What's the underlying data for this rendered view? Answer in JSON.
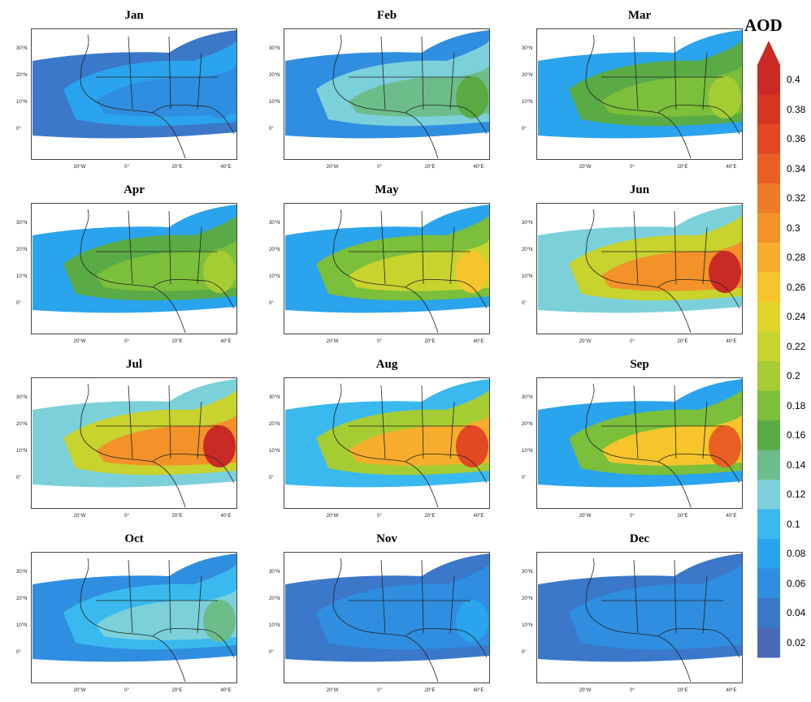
{
  "panels": [
    {
      "month": "Jan",
      "hot": 0.05,
      "mid": 0.08
    },
    {
      "month": "Feb",
      "hot": 0.16,
      "mid": 0.12
    },
    {
      "month": "Mar",
      "hot": 0.2,
      "mid": 0.16
    },
    {
      "month": "Apr",
      "hot": 0.19,
      "mid": 0.16
    },
    {
      "month": "May",
      "hot": 0.25,
      "mid": 0.17
    },
    {
      "month": "Jun",
      "hot": 0.39,
      "mid": 0.22
    },
    {
      "month": "Jul",
      "hot": 0.4,
      "mid": 0.22
    },
    {
      "month": "Aug",
      "hot": 0.36,
      "mid": 0.19
    },
    {
      "month": "Sep",
      "hot": 0.34,
      "mid": 0.18
    },
    {
      "month": "Oct",
      "hot": 0.14,
      "mid": 0.1
    },
    {
      "month": "Nov",
      "hot": 0.07,
      "mid": 0.06
    },
    {
      "month": "Dec",
      "hot": 0.06,
      "mid": 0.05
    }
  ],
  "lat_labels": [
    "30°N",
    "20°N",
    "10°N",
    "0°"
  ],
  "lon_labels": [
    "20°W",
    "0°",
    "20°E",
    "40°E"
  ],
  "colorbar": {
    "title": "AOD",
    "ticks": [
      "0.4",
      "0.38",
      "0.36",
      "0.34",
      "0.32",
      "0.3",
      "0.28",
      "0.26",
      "0.24",
      "0.22",
      "0.2",
      "0.18",
      "0.16",
      "0.14",
      "0.12",
      "0.1",
      "0.08",
      "0.06",
      "0.04",
      "0.02"
    ],
    "colors": [
      "#4a69b8",
      "#3b78c9",
      "#2f8ee0",
      "#2aa4ec",
      "#3ab9ee",
      "#7bd0da",
      "#6dbd8a",
      "#5aab45",
      "#7bbf3a",
      "#a6cc33",
      "#c8d32d",
      "#e3d42a",
      "#f5c52b",
      "#f7ad2b",
      "#f39229",
      "#ef7a27",
      "#ea6024",
      "#e14823",
      "#d63523",
      "#ca2a25"
    ]
  }
}
